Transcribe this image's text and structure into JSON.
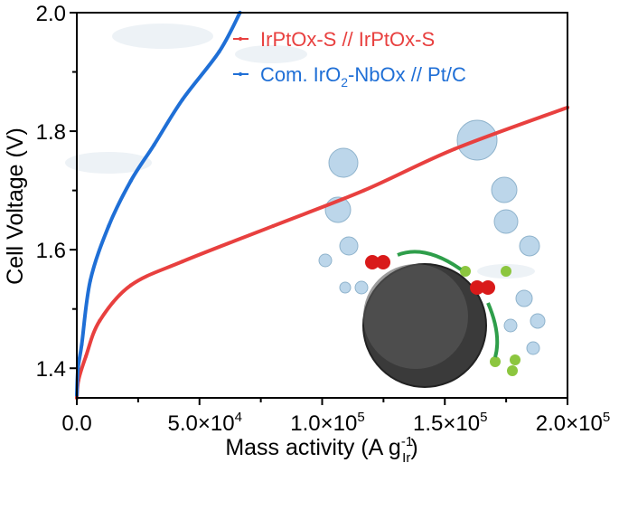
{
  "chart_data": {
    "type": "line",
    "title": "",
    "xlabel": "Mass activity (A g",
    "xlabel_sup": "-1",
    "xlabel_sub": "Ir",
    "xlabel_close": ")",
    "ylabel": "Cell Voltage (V)",
    "xlim": [
      0,
      200000
    ],
    "ylim": [
      1.35,
      2.0
    ],
    "x_ticks": [
      {
        "value": 0,
        "label": "0.0"
      },
      {
        "value": 50000,
        "label": "5.0×10",
        "exp": "4"
      },
      {
        "value": 100000,
        "label": "1.0×10",
        "exp": "5"
      },
      {
        "value": 150000,
        "label": "1.5×10",
        "exp": "5"
      },
      {
        "value": 200000,
        "label": "2.0×10",
        "exp": "5"
      }
    ],
    "y_ticks": [
      {
        "value": 1.4,
        "label": "1.4"
      },
      {
        "value": 1.6,
        "label": "1.6"
      },
      {
        "value": 1.8,
        "label": "1.8"
      },
      {
        "value": 2.0,
        "label": "2.0"
      }
    ],
    "legend_position": "top-right",
    "grid": false,
    "series": [
      {
        "name": "IrPtOx-S // IrPtOx-S",
        "color": "#e8403f",
        "x": [
          0,
          700,
          3700,
          9300,
          22000,
          43000,
          80000,
          117000,
          154000,
          200000
        ],
        "y": [
          1.35,
          1.38,
          1.42,
          1.48,
          1.54,
          1.58,
          1.64,
          1.7,
          1.77,
          1.84
        ]
      },
      {
        "name_parts": [
          "Com. IrO",
          "2",
          "-NbOx // Pt/C"
        ],
        "name": "Com. IrO2-NbOx // Pt/C",
        "color": "#1f6fd6",
        "x": [
          0,
          500,
          2000,
          5500,
          13000,
          22000,
          31500,
          43000,
          58000,
          66500
        ],
        "y": [
          1.355,
          1.4,
          1.44,
          1.548,
          1.64,
          1.716,
          1.777,
          1.853,
          1.934,
          2.0
        ]
      }
    ]
  }
}
